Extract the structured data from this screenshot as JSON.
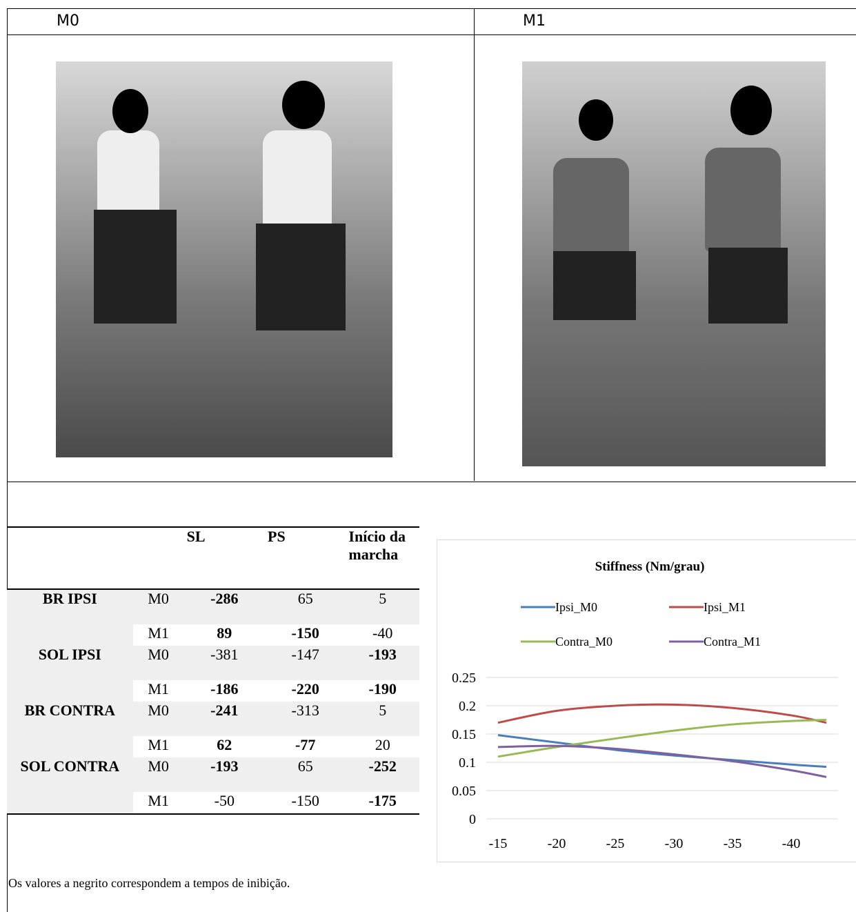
{
  "panels": [
    "M0",
    "M1"
  ],
  "table": {
    "columns": [
      "SL",
      "PS",
      "Início da marcha"
    ],
    "groups": [
      {
        "name": "BR IPSI",
        "rows": [
          {
            "label": "M0",
            "cells": [
              {
                "value": -286,
                "bold": true
              },
              {
                "value": 65,
                "bold": false
              },
              {
                "value": 5,
                "bold": false
              }
            ]
          },
          {
            "label": "M1",
            "cells": [
              {
                "value": 89,
                "bold": true
              },
              {
                "value": -150,
                "bold": true
              },
              {
                "value": -40,
                "bold": false
              }
            ]
          }
        ]
      },
      {
        "name": "SOL IPSI",
        "rows": [
          {
            "label": "M0",
            "cells": [
              {
                "value": -381,
                "bold": false
              },
              {
                "value": -147,
                "bold": false
              },
              {
                "value": -193,
                "bold": true
              }
            ]
          },
          {
            "label": "M1",
            "cells": [
              {
                "value": -186,
                "bold": true
              },
              {
                "value": -220,
                "bold": true
              },
              {
                "value": -190,
                "bold": true
              }
            ]
          }
        ]
      },
      {
        "name": "BR CONTRA",
        "rows": [
          {
            "label": "M0",
            "cells": [
              {
                "value": -241,
                "bold": true
              },
              {
                "value": -313,
                "bold": false
              },
              {
                "value": 5,
                "bold": false
              }
            ]
          },
          {
            "label": "M1",
            "cells": [
              {
                "value": 62,
                "bold": true
              },
              {
                "value": -77,
                "bold": true
              },
              {
                "value": 20,
                "bold": false
              }
            ]
          }
        ]
      },
      {
        "name": "SOL CONTRA",
        "rows": [
          {
            "label": "M0",
            "cells": [
              {
                "value": -193,
                "bold": true
              },
              {
                "value": 65,
                "bold": false
              },
              {
                "value": -252,
                "bold": true
              }
            ]
          },
          {
            "label": "M1",
            "cells": [
              {
                "value": -50,
                "bold": false
              },
              {
                "value": -150,
                "bold": false
              },
              {
                "value": -175,
                "bold": true
              }
            ]
          }
        ]
      }
    ]
  },
  "chart_data": {
    "type": "line",
    "title": "Stiffness (Nm/grau)",
    "x": [
      -15,
      -20,
      -25,
      -30,
      -35,
      -40,
      -43
    ],
    "series": [
      {
        "name": "Ipsi_M0",
        "color": "#4a7ebb",
        "values": [
          0.148,
          0.135,
          0.122,
          0.112,
          0.104,
          0.096,
          0.092
        ]
      },
      {
        "name": "Ipsi_M1",
        "color": "#be4b48",
        "values": [
          0.17,
          0.191,
          0.2,
          0.202,
          0.196,
          0.183,
          0.17
        ]
      },
      {
        "name": "Contra_M0",
        "color": "#98b954",
        "values": [
          0.11,
          0.127,
          0.142,
          0.156,
          0.167,
          0.173,
          0.175
        ]
      },
      {
        "name": "Contra_M1",
        "color": "#7d60a0",
        "values": [
          0.127,
          0.129,
          0.124,
          0.114,
          0.102,
          0.086,
          0.074
        ]
      }
    ],
    "xlim": [
      -14,
      -44
    ],
    "xticks": [
      -15,
      -20,
      -25,
      -30,
      -35,
      -40
    ],
    "ylim": [
      0,
      0.25
    ],
    "yticks": [
      0,
      0.05,
      0.1,
      0.15,
      0.2,
      0.25
    ],
    "grid": true
  },
  "footnote": "Os valores a negrito correspondem a tempos de inibição."
}
